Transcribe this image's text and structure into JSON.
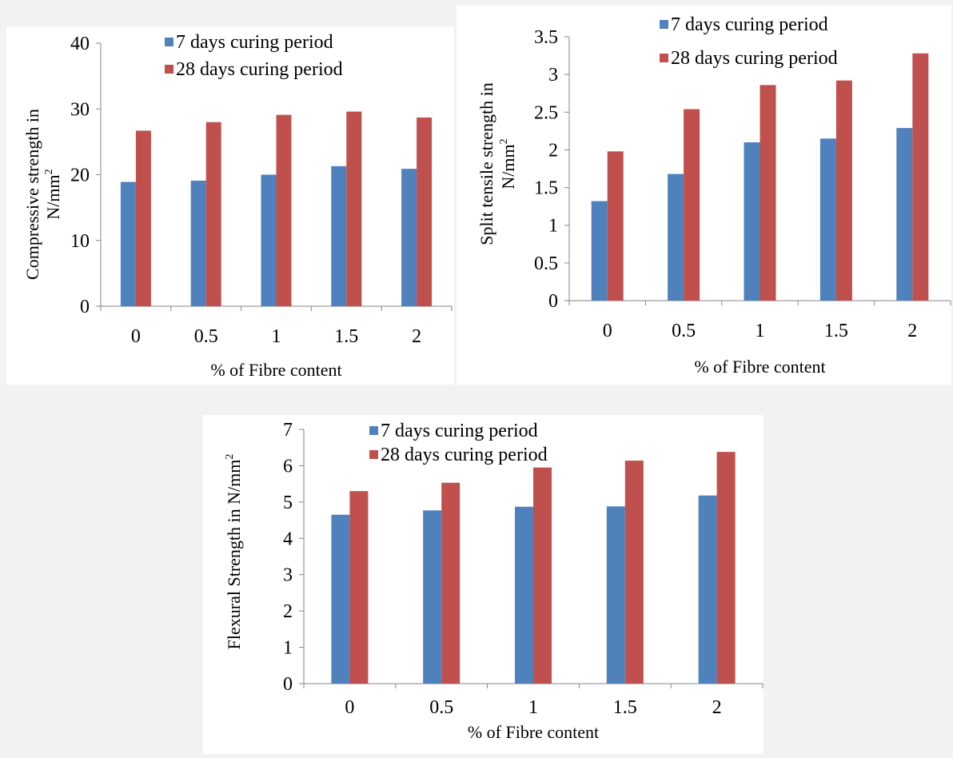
{
  "chart_data": [
    {
      "type": "bar",
      "categories": [
        "0",
        "0.5",
        "1",
        "1.5",
        "2"
      ],
      "series": [
        {
          "name": "7 days curing period",
          "values": [
            18.9,
            19.1,
            20.0,
            21.3,
            20.9
          ]
        },
        {
          "name": "28 days curing period",
          "values": [
            26.7,
            28.0,
            29.1,
            29.6,
            28.7
          ]
        }
      ],
      "title": "",
      "xlabel": "% of Fibre content",
      "ylabel_line1": "Compressive strength in",
      "ylabel_line2": "N/mm",
      "ylabel_sup": "2",
      "ylim": [
        0,
        40
      ],
      "yticks": [
        "0",
        "10",
        "20",
        "30",
        "40"
      ],
      "grid": false,
      "legend_position": "top"
    },
    {
      "type": "bar",
      "categories": [
        "0",
        "0.5",
        "1",
        "1.5",
        "2"
      ],
      "series": [
        {
          "name": "7 days curing period",
          "values": [
            1.32,
            1.68,
            2.1,
            2.15,
            2.29
          ]
        },
        {
          "name": "28 days curing period",
          "values": [
            1.98,
            2.54,
            2.86,
            2.92,
            3.28
          ]
        }
      ],
      "title": "",
      "xlabel": "% of Fibre content",
      "ylabel_line1": "Split tensile strength in",
      "ylabel_line2": "N/mm",
      "ylabel_sup": "2",
      "ylim": [
        0,
        3.5
      ],
      "yticks": [
        "0",
        "0.5",
        "1",
        "1.5",
        "2",
        "2.5",
        "3",
        "3.5"
      ],
      "grid": false,
      "legend_position": "top"
    },
    {
      "type": "bar",
      "categories": [
        "0",
        "0.5",
        "1",
        "1.5",
        "2"
      ],
      "series": [
        {
          "name": "7 days curing period",
          "values": [
            4.65,
            4.77,
            4.87,
            4.88,
            5.18
          ]
        },
        {
          "name": "28 days curing period",
          "values": [
            5.3,
            5.53,
            5.95,
            6.14,
            6.38
          ]
        }
      ],
      "title": "",
      "xlabel": "% of Fibre content",
      "ylabel_line1": "Flexural Strength in N/mm",
      "ylabel_line2": "",
      "ylabel_sup": "2",
      "ylim": [
        0,
        7
      ],
      "yticks": [
        "0",
        "1",
        "2",
        "3",
        "4",
        "5",
        "6",
        "7"
      ],
      "grid": false,
      "legend_position": "top"
    }
  ],
  "colors": {
    "series_7_days": "#4f81bd",
    "series_28_days": "#c0504d",
    "axis": "#868686",
    "panel_bg": "#ffffff",
    "page_bg": "#f2f2f2"
  }
}
